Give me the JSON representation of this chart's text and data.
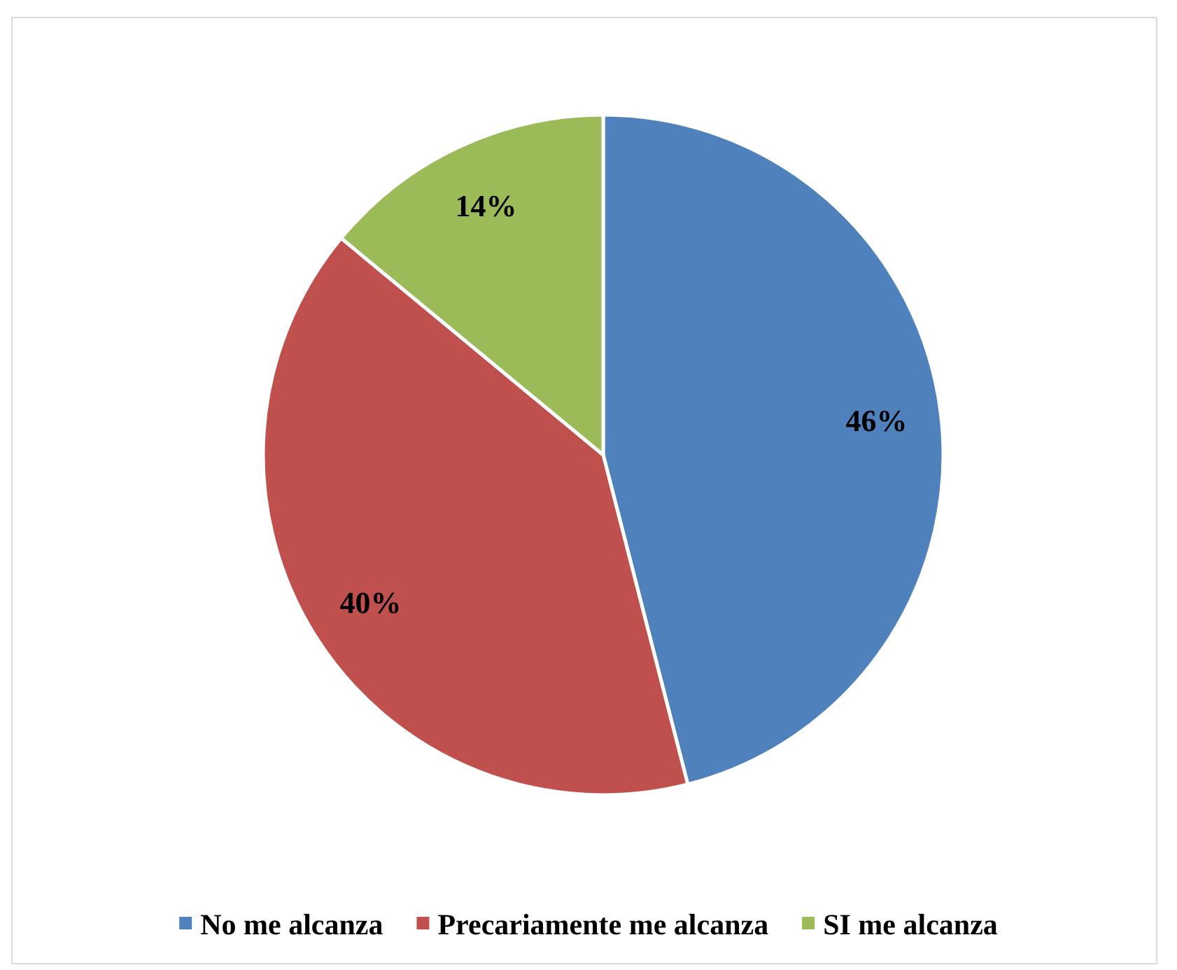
{
  "chart_data": {
    "type": "pie",
    "categories": [
      "No me alcanza",
      "Precariamente me alcanza",
      "SI me alcanza"
    ],
    "values": [
      46,
      40,
      14
    ],
    "colors": [
      "#4f81bd",
      "#c0504d",
      "#9bbb59"
    ],
    "value_labels": [
      "46%",
      "40%",
      "14%"
    ],
    "legend": "bottom"
  }
}
